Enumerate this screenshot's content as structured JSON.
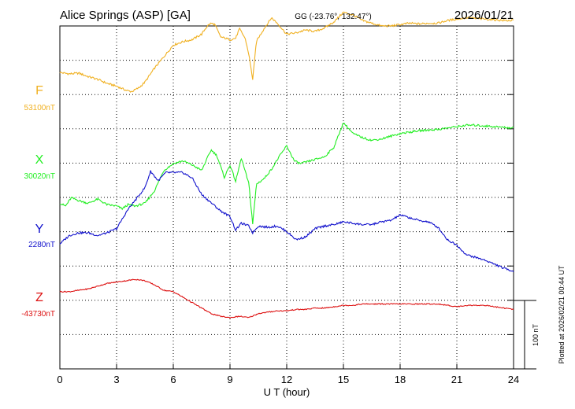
{
  "header": {
    "station": "Alice Springs (ASP)  [GA]",
    "coords": "GG (-23.76°, 132.47°)",
    "date": "2026/01/21"
  },
  "footer": {
    "plotted_note": "Plotted at 2026/02/21 00:44 UT",
    "scale_label": "100 nT"
  },
  "colors": {
    "F": "#f0b020",
    "X": "#22ee22",
    "Y": "#1111cc",
    "Z": "#dd1111"
  },
  "chart_data": {
    "type": "line",
    "title": "Alice Springs (ASP)  [GA]",
    "xlabel": "U T (hour)",
    "xlim": [
      0,
      24
    ],
    "x_ticks": [
      0,
      3,
      6,
      9,
      12,
      15,
      18,
      21,
      24
    ],
    "x_tick_labels": [
      "0",
      "3",
      "6",
      "9",
      "12",
      "15",
      "18",
      "21",
      "24"
    ],
    "grid": true,
    "scale_bar_nT": 100,
    "series": [
      {
        "name": "F",
        "baseline_label": "53100nT",
        "unit": "nT",
        "x": [
          0,
          0.5,
          1,
          1.5,
          2,
          2.5,
          3,
          3.5,
          3.8,
          4.2,
          4.5,
          5,
          5.5,
          6,
          6.5,
          7,
          7.5,
          7.8,
          8,
          8.2,
          8.5,
          9,
          9.3,
          9.5,
          9.8,
          10.0,
          10.2,
          10.4,
          10.8,
          11.2,
          11.5,
          12,
          12.5,
          13,
          13.5,
          14,
          14.5,
          15,
          15.5,
          16,
          16.5,
          17,
          17.5,
          18,
          18.5,
          19,
          19.5,
          20,
          20.5,
          21,
          21.5,
          22,
          22.5,
          23,
          23.5,
          24
        ],
        "values": [
          32,
          30,
          31,
          26,
          22,
          16,
          12,
          6,
          4,
          10,
          18,
          38,
          55,
          72,
          77,
          80,
          88,
          100,
          104,
          102,
          84,
          80,
          82,
          96,
          82,
          58,
          22,
          78,
          96,
          112,
          104,
          88,
          90,
          94,
          92,
          97,
          106,
          120,
          116,
          108,
          104,
          100,
          100,
          102,
          104,
          103,
          104,
          104,
          108,
          110,
          112,
          111,
          110,
          109,
          108,
          108
        ]
      },
      {
        "name": "X",
        "baseline_label": "30020nT",
        "unit": "nT",
        "x": [
          0,
          0.3,
          0.6,
          1,
          1.5,
          2,
          2.5,
          3,
          3.3,
          3.6,
          4,
          4.5,
          5,
          5.5,
          6,
          6.5,
          7,
          7.5,
          8,
          8.3,
          8.7,
          9,
          9.3,
          9.6,
          10.0,
          10.2,
          10.4,
          10.8,
          11.2,
          11.6,
          12,
          12.4,
          12.7,
          13,
          13.5,
          14,
          14.5,
          15,
          15.5,
          16,
          16.5,
          17,
          17.5,
          18,
          18.5,
          19,
          19.5,
          20,
          20.5,
          21,
          21.5,
          22,
          22.5,
          23,
          23.5,
          24
        ],
        "values": [
          -58,
          -62,
          -50,
          -54,
          -58,
          -52,
          -60,
          -62,
          -66,
          -60,
          -62,
          -58,
          -40,
          -10,
          0,
          4,
          -2,
          -10,
          20,
          12,
          -20,
          -2,
          -26,
          8,
          -30,
          -88,
          -30,
          -22,
          -8,
          10,
          26,
          4,
          0,
          2,
          6,
          10,
          24,
          60,
          44,
          38,
          34,
          36,
          40,
          44,
          46,
          48,
          49,
          50,
          52,
          54,
          56,
          56,
          55,
          54,
          53,
          52
        ]
      },
      {
        "name": "Y",
        "baseline_label": "2280nT",
        "unit": "nT",
        "x": [
          0,
          0.5,
          1,
          1.5,
          2,
          2.5,
          3,
          3.3,
          3.6,
          4,
          4.5,
          4.8,
          5.2,
          5.6,
          6,
          6.5,
          7,
          7.5,
          8,
          8.5,
          9,
          9.3,
          9.6,
          10.0,
          10.2,
          10.5,
          11,
          11.5,
          12,
          12.5,
          13,
          13.5,
          14,
          14.5,
          15,
          15.5,
          16,
          16.5,
          17,
          17.5,
          18,
          18.5,
          19,
          19.5,
          20,
          20.5,
          21,
          21.5,
          22,
          22.5,
          23,
          23.5,
          24
        ],
        "values": [
          -16,
          -4,
          0,
          0,
          -4,
          0,
          6,
          20,
          34,
          48,
          66,
          90,
          76,
          88,
          88,
          88,
          80,
          56,
          44,
          32,
          24,
          4,
          14,
          10,
          0,
          10,
          8,
          10,
          2,
          -10,
          -6,
          6,
          10,
          12,
          16,
          14,
          12,
          12,
          16,
          18,
          26,
          22,
          18,
          16,
          8,
          -10,
          -18,
          -32,
          -36,
          -40,
          -46,
          -52,
          -56
        ]
      },
      {
        "name": "Z",
        "baseline_label": "-43730nT",
        "unit": "nT",
        "x": [
          0,
          0.5,
          1,
          1.5,
          2,
          2.5,
          3,
          3.5,
          4,
          4.5,
          5,
          5.5,
          6,
          6.5,
          7,
          7.5,
          8,
          8.5,
          9,
          9.5,
          10,
          10.5,
          11,
          11.5,
          12,
          12.5,
          13,
          13.5,
          14,
          14.5,
          15,
          15.5,
          16,
          16.5,
          17,
          17.5,
          18,
          18.5,
          19,
          19.5,
          20,
          20.5,
          21,
          21.5,
          22,
          22.5,
          23,
          23.5,
          24
        ],
        "values": [
          14,
          14,
          16,
          18,
          22,
          26,
          28,
          30,
          32,
          30,
          24,
          16,
          14,
          6,
          -2,
          -10,
          -18,
          -22,
          -24,
          -22,
          -24,
          -18,
          -16,
          -14,
          -14,
          -12,
          -12,
          -10,
          -10,
          -8,
          -6,
          -6,
          -4,
          -4,
          -4,
          -4,
          -4,
          -4,
          -4,
          -4,
          -4,
          -6,
          -8,
          -6,
          -6,
          -6,
          -8,
          -10,
          -12
        ]
      }
    ]
  }
}
